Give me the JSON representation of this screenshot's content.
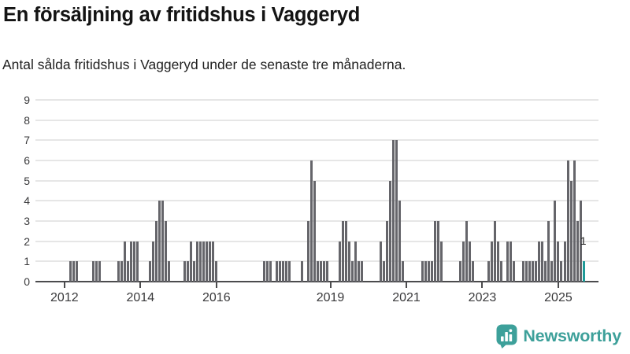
{
  "header": {
    "title": "En försäljning av fritidshus i Vaggeryd",
    "subtitle": "Antal sålda fritidshus i Vaggeryd under de senaste tre månaderna."
  },
  "chart_data": {
    "type": "bar",
    "title": "En försäljning av fritidshus i Vaggeryd",
    "subtitle": "Antal sålda fritidshus i Vaggeryd under de senaste tre månaderna.",
    "xlabel": "",
    "ylabel": "",
    "ylim": [
      0,
      9
    ],
    "yticks": [
      0,
      1,
      2,
      3,
      4,
      5,
      6,
      7,
      8,
      9
    ],
    "xticks": [
      2012,
      2014,
      2016,
      2019,
      2021,
      2023,
      2025
    ],
    "grid": true,
    "bar_color": "#65656a",
    "highlight_color": "#1e9a98",
    "axis_color": "#4b4b4d",
    "last_point_label": "1",
    "points_format": [
      "month",
      "value"
    ],
    "points": [
      [
        "2012-03",
        1
      ],
      [
        "2012-04",
        1
      ],
      [
        "2012-05",
        1
      ],
      [
        "2012-10",
        1
      ],
      [
        "2012-11",
        1
      ],
      [
        "2012-12",
        1
      ],
      [
        "2013-06",
        1
      ],
      [
        "2013-07",
        1
      ],
      [
        "2013-08",
        2
      ],
      [
        "2013-09",
        1
      ],
      [
        "2013-10",
        2
      ],
      [
        "2013-11",
        2
      ],
      [
        "2013-12",
        2
      ],
      [
        "2014-04",
        1
      ],
      [
        "2014-05",
        2
      ],
      [
        "2014-06",
        3
      ],
      [
        "2014-07",
        4
      ],
      [
        "2014-08",
        4
      ],
      [
        "2014-09",
        3
      ],
      [
        "2014-10",
        1
      ],
      [
        "2015-03",
        1
      ],
      [
        "2015-04",
        1
      ],
      [
        "2015-05",
        2
      ],
      [
        "2015-06",
        1
      ],
      [
        "2015-07",
        2
      ],
      [
        "2015-08",
        2
      ],
      [
        "2015-09",
        2
      ],
      [
        "2015-10",
        2
      ],
      [
        "2015-11",
        2
      ],
      [
        "2015-12",
        2
      ],
      [
        "2016-01",
        1
      ],
      [
        "2017-04",
        1
      ],
      [
        "2017-05",
        1
      ],
      [
        "2017-06",
        1
      ],
      [
        "2017-08",
        1
      ],
      [
        "2017-09",
        1
      ],
      [
        "2017-10",
        1
      ],
      [
        "2017-11",
        1
      ],
      [
        "2017-12",
        1
      ],
      [
        "2018-04",
        1
      ],
      [
        "2018-06",
        3
      ],
      [
        "2018-07",
        6
      ],
      [
        "2018-08",
        5
      ],
      [
        "2018-09",
        1
      ],
      [
        "2018-10",
        1
      ],
      [
        "2018-11",
        1
      ],
      [
        "2018-12",
        1
      ],
      [
        "2019-04",
        2
      ],
      [
        "2019-05",
        3
      ],
      [
        "2019-06",
        3
      ],
      [
        "2019-07",
        2
      ],
      [
        "2019-08",
        1
      ],
      [
        "2019-09",
        2
      ],
      [
        "2019-10",
        1
      ],
      [
        "2019-11",
        1
      ],
      [
        "2020-05",
        2
      ],
      [
        "2020-06",
        1
      ],
      [
        "2020-07",
        3
      ],
      [
        "2020-08",
        5
      ],
      [
        "2020-09",
        7
      ],
      [
        "2020-10",
        7
      ],
      [
        "2020-11",
        4
      ],
      [
        "2020-12",
        1
      ],
      [
        "2021-06",
        1
      ],
      [
        "2021-07",
        1
      ],
      [
        "2021-08",
        1
      ],
      [
        "2021-09",
        1
      ],
      [
        "2021-10",
        3
      ],
      [
        "2021-11",
        3
      ],
      [
        "2021-12",
        2
      ],
      [
        "2022-06",
        1
      ],
      [
        "2022-07",
        2
      ],
      [
        "2022-08",
        3
      ],
      [
        "2022-09",
        2
      ],
      [
        "2022-10",
        1
      ],
      [
        "2023-03",
        1
      ],
      [
        "2023-04",
        2
      ],
      [
        "2023-05",
        3
      ],
      [
        "2023-06",
        2
      ],
      [
        "2023-07",
        1
      ],
      [
        "2023-09",
        2
      ],
      [
        "2023-10",
        2
      ],
      [
        "2023-11",
        1
      ],
      [
        "2024-02",
        1
      ],
      [
        "2024-03",
        1
      ],
      [
        "2024-04",
        1
      ],
      [
        "2024-05",
        1
      ],
      [
        "2024-06",
        1
      ],
      [
        "2024-07",
        2
      ],
      [
        "2024-08",
        2
      ],
      [
        "2024-09",
        1
      ],
      [
        "2024-10",
        3
      ],
      [
        "2024-11",
        1
      ],
      [
        "2024-12",
        4
      ],
      [
        "2025-01",
        2
      ],
      [
        "2025-02",
        1
      ],
      [
        "2025-03",
        2
      ],
      [
        "2025-04",
        6
      ],
      [
        "2025-05",
        5
      ],
      [
        "2025-06",
        6
      ],
      [
        "2025-07",
        3
      ],
      [
        "2025-08",
        4
      ],
      [
        "2025-09",
        1
      ]
    ]
  },
  "footer": {
    "brand": "Newsworthy",
    "brand_color": "#3da09a"
  }
}
